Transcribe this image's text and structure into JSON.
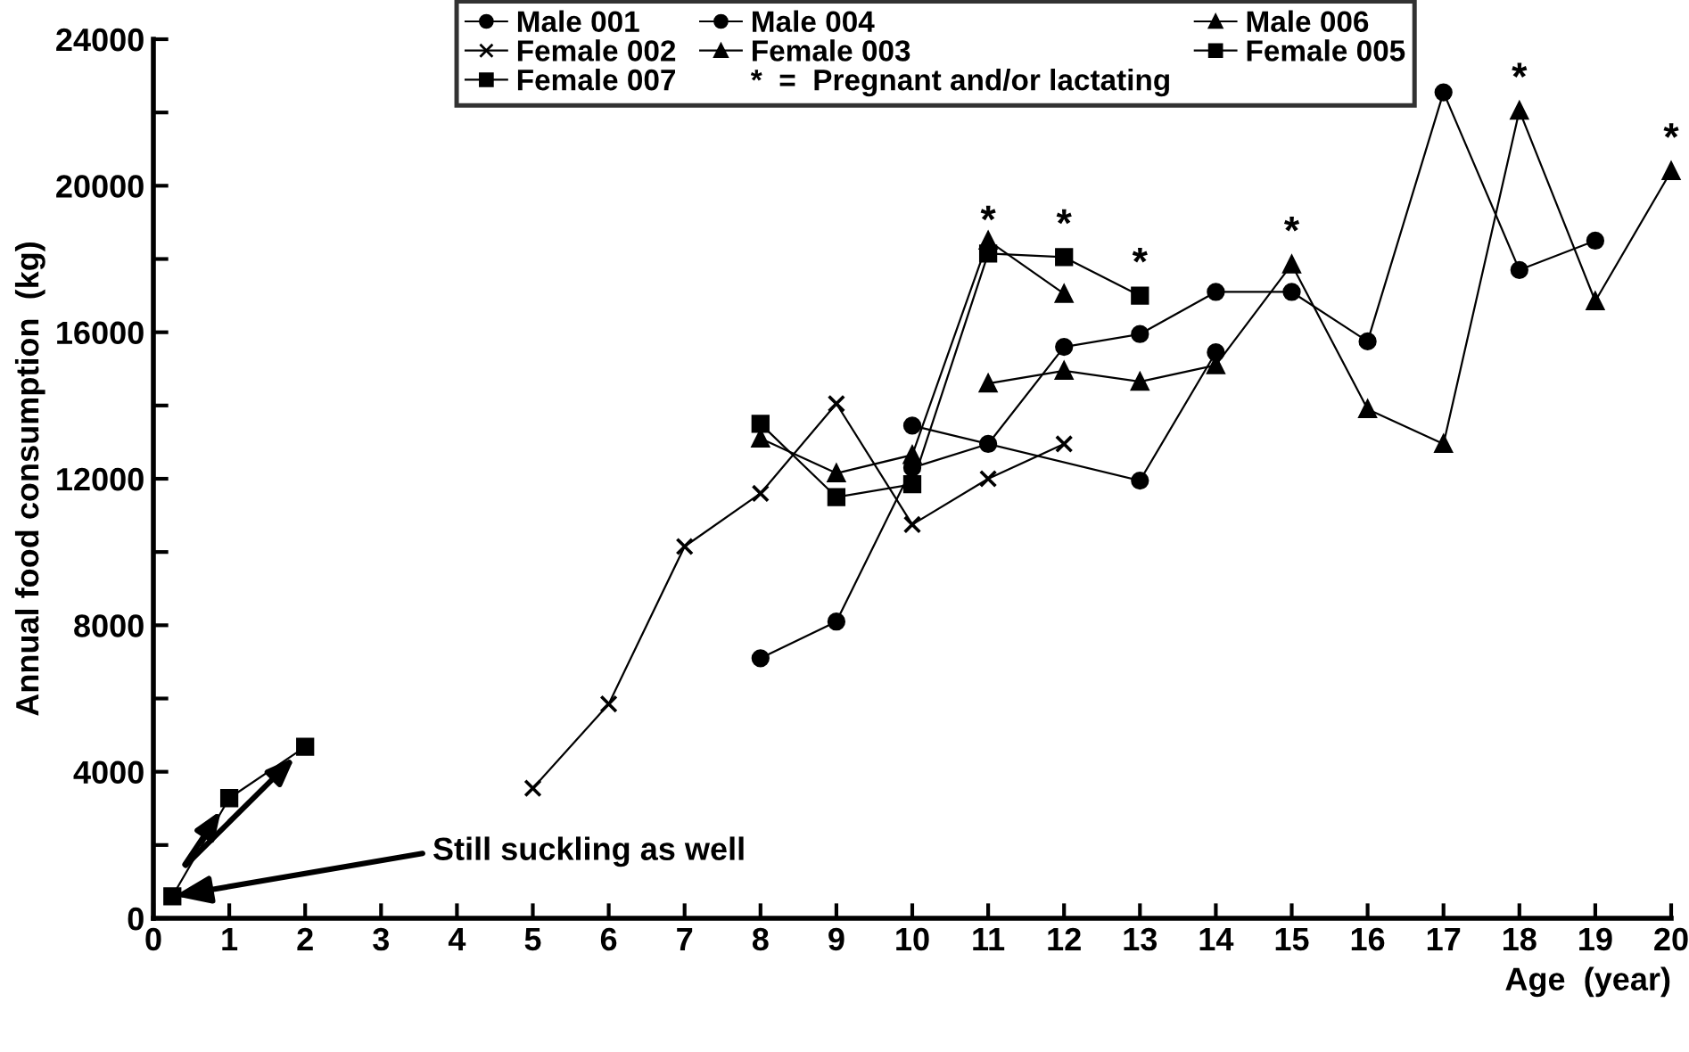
{
  "chart_data": {
    "type": "line",
    "xlabel": "Age  (year)",
    "ylabel": "Annual food consumption  (kg)",
    "xlim": [
      0,
      20
    ],
    "xticks": [
      0,
      1,
      2,
      3,
      4,
      5,
      6,
      7,
      8,
      9,
      10,
      11,
      12,
      13,
      14,
      15,
      16,
      17,
      18,
      19,
      20
    ],
    "ylim": [
      0,
      24000
    ],
    "yticks": [
      0,
      {
        "value": 2000,
        "label": null
      },
      4000,
      {
        "value": 6000,
        "label": null
      },
      8000,
      {
        "value": 10000,
        "label": null
      },
      12000,
      {
        "value": 14000,
        "label": null
      },
      16000,
      {
        "value": 18000,
        "label": null
      },
      20000,
      {
        "value": 22000,
        "label": null
      },
      24000
    ],
    "grid": false,
    "legend": "top",
    "line_style": "solid",
    "series": [
      {
        "name": "Male 001",
        "color": "#000000",
        "marker": "circle",
        "x": [
          10,
          13,
          14
        ],
        "values": [
          13450,
          11950,
          15450
        ]
      },
      {
        "name": "Male 004",
        "color": "#000000",
        "marker": "circle",
        "x": [
          8,
          9,
          10,
          11,
          12,
          13,
          14,
          15,
          16,
          17,
          18,
          19
        ],
        "values": [
          7100,
          8100,
          12300,
          12950,
          15600,
          15950,
          17100,
          17100,
          15750,
          22550,
          17700,
          18500
        ]
      },
      {
        "name": "Male 006",
        "color": "#000000",
        "marker": "triangle",
        "x": [
          8,
          9,
          10,
          11,
          12
        ],
        "values": [
          13100,
          12150,
          12650,
          18500,
          17050
        ]
      },
      {
        "name": "Female 002",
        "color": "#000000",
        "marker": "cross",
        "x": [
          5,
          6,
          7,
          8,
          9,
          10,
          11,
          12
        ],
        "values": [
          3550,
          5850,
          10150,
          11600,
          14050,
          10750,
          12000,
          12950
        ]
      },
      {
        "name": "Female 003",
        "color": "#000000",
        "marker": "triangle",
        "x": [
          11,
          12,
          13,
          14,
          15,
          16,
          17,
          18,
          19,
          20
        ],
        "values": [
          14600,
          14950,
          14650,
          15100,
          17850,
          13900,
          12950,
          22050,
          16850,
          20400
        ]
      },
      {
        "name": "Female 005",
        "color": "#000000",
        "marker": "square",
        "x": [
          8,
          9,
          10,
          11,
          12,
          13
        ],
        "values": [
          13500,
          11500,
          11850,
          18150,
          18050,
          17000
        ]
      },
      {
        "name": "Female 007",
        "color": "#000000",
        "marker": "square",
        "x": [
          0.25,
          1,
          2
        ],
        "values": [
          600,
          3280,
          4680
        ]
      }
    ],
    "legend_title": "*  =  Pregnant and/or lactating",
    "annotations": [
      {
        "text": "Still suckling as well",
        "x": 0.25,
        "y": 600
      },
      {
        "text": "*",
        "x": 11,
        "y": 18150
      },
      {
        "text": "*",
        "x": 12,
        "y": 18050
      },
      {
        "text": "*",
        "x": 13,
        "y": 17000
      },
      {
        "text": "*",
        "x": 15,
        "y": 17850
      },
      {
        "text": "*",
        "x": 18,
        "y": 22050
      },
      {
        "text": "*",
        "x": 20,
        "y": 20400
      }
    ]
  }
}
